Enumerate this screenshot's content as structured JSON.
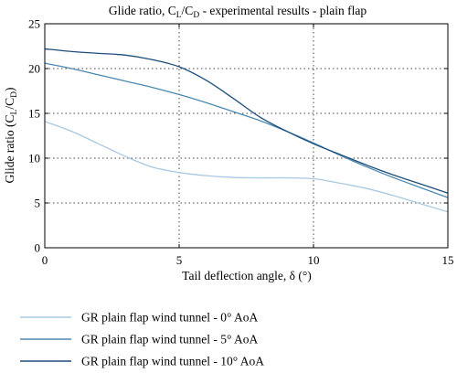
{
  "chart_data": {
    "type": "line",
    "title": "Glide ratio, C_L/C_D - experimental results - plain flap",
    "title_parts": {
      "pre": "Glide ratio, C",
      "sub1": "L",
      "mid": "/C",
      "sub2": "D",
      "post": " - experimental results - plain flap"
    },
    "xlabel": "Tail deflection angle, δ (°)",
    "ylabel": "Glide ratio (C_L/C_D)",
    "ylabel_parts": {
      "pre": "Glide ratio (C",
      "sub1": "L",
      "mid": "/C",
      "sub2": "D",
      "post": ")"
    },
    "xlim": [
      0,
      15
    ],
    "ylim": [
      0,
      25
    ],
    "xticks": [
      0,
      5,
      10,
      15
    ],
    "yticks": [
      0,
      5,
      10,
      15,
      20,
      25
    ],
    "xtick_labels": [
      "0",
      "5",
      "10",
      "15"
    ],
    "ytick_labels": [
      "0",
      "5",
      "10",
      "15",
      "20",
      "25"
    ],
    "grid": "dotted at interior ticks",
    "legend_position": "below",
    "series": [
      {
        "name": "GR plain flap wind tunnel - 0° AoA",
        "color": "#a9c8e2",
        "x": [
          0,
          1,
          2,
          3,
          4,
          5,
          6,
          7,
          8,
          9,
          10,
          11,
          12,
          13,
          14,
          15
        ],
        "y": [
          14.1,
          13.0,
          11.6,
          10.2,
          9.0,
          8.4,
          8.05,
          7.85,
          7.8,
          7.8,
          7.7,
          7.2,
          6.6,
          5.8,
          4.9,
          4.0
        ]
      },
      {
        "name": "GR plain flap wind tunnel - 5° AoA",
        "color": "#4a8ab0",
        "x": [
          0,
          1,
          2,
          3,
          4,
          5,
          6,
          7,
          8,
          9,
          10,
          11,
          12,
          13,
          14,
          15
        ],
        "y": [
          20.6,
          20.0,
          19.3,
          18.6,
          17.9,
          17.1,
          16.2,
          15.2,
          14.2,
          13.0,
          11.7,
          10.3,
          9.0,
          7.8,
          6.7,
          5.6
        ]
      },
      {
        "name": "GR plain flap wind tunnel - 10° AoA",
        "color": "#1d4e7a",
        "x": [
          0,
          1,
          2,
          3,
          4,
          5,
          6,
          7,
          8,
          9,
          10,
          11,
          12,
          13,
          14,
          15
        ],
        "y": [
          22.2,
          21.9,
          21.7,
          21.5,
          21.0,
          20.2,
          18.7,
          16.7,
          14.6,
          13.0,
          11.6,
          10.4,
          9.2,
          8.1,
          7.1,
          6.1
        ]
      }
    ]
  }
}
